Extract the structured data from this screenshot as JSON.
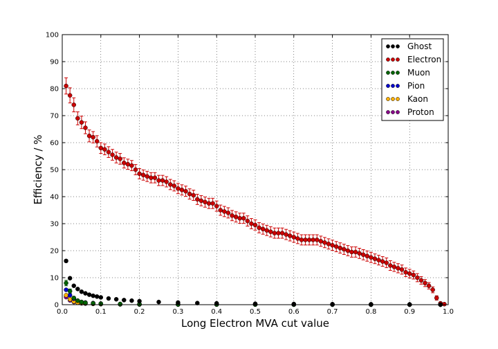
{
  "chart_data": {
    "type": "scatter",
    "title": "",
    "xlabel": "Long Electron MVA cut value",
    "ylabel": "Efficiency / %",
    "xlim": [
      0.0,
      1.0
    ],
    "ylim": [
      0,
      100
    ],
    "xticks": [
      "0.0",
      "0.1",
      "0.2",
      "0.3",
      "0.4",
      "0.5",
      "0.6",
      "0.7",
      "0.8",
      "0.9",
      "1.0"
    ],
    "yticks": [
      "0",
      "10",
      "20",
      "30",
      "40",
      "50",
      "60",
      "70",
      "80",
      "90",
      "100"
    ],
    "grid": true,
    "legend_position": "top-right",
    "series": [
      {
        "name": "Ghost",
        "color": "#000000",
        "x": [
          0.01,
          0.02,
          0.03,
          0.04,
          0.05,
          0.06,
          0.07,
          0.08,
          0.09,
          0.1,
          0.12,
          0.14,
          0.16,
          0.18,
          0.2,
          0.25,
          0.3,
          0.35,
          0.4,
          0.5,
          0.6,
          0.7,
          0.8,
          0.9,
          0.98
        ],
        "y": [
          16.2,
          9.8,
          7.0,
          5.8,
          4.8,
          4.2,
          3.7,
          3.3,
          3.0,
          2.7,
          2.3,
          2.0,
          1.7,
          1.5,
          1.3,
          1.0,
          0.8,
          0.6,
          0.5,
          0.35,
          0.25,
          0.2,
          0.15,
          0.1,
          0.05
        ],
        "yerr": [
          0.5,
          0.4,
          0.3,
          0.3,
          0.2,
          0.2,
          0.2,
          0.15,
          0.15,
          0.15,
          0.1,
          0.1,
          0.1,
          0.1,
          0.1,
          0.1,
          0.1,
          0.05,
          0.05,
          0.05,
          0.05,
          0.05,
          0.05,
          0.05,
          0.05
        ]
      },
      {
        "name": "Electron",
        "color": "#cc0000",
        "x": [
          0.01,
          0.02,
          0.03,
          0.04,
          0.05,
          0.06,
          0.07,
          0.08,
          0.09,
          0.1,
          0.11,
          0.12,
          0.13,
          0.14,
          0.15,
          0.16,
          0.17,
          0.18,
          0.19,
          0.2,
          0.21,
          0.22,
          0.23,
          0.24,
          0.25,
          0.26,
          0.27,
          0.28,
          0.29,
          0.3,
          0.31,
          0.32,
          0.33,
          0.34,
          0.35,
          0.36,
          0.37,
          0.38,
          0.39,
          0.4,
          0.41,
          0.42,
          0.43,
          0.44,
          0.45,
          0.46,
          0.47,
          0.48,
          0.49,
          0.5,
          0.51,
          0.52,
          0.53,
          0.54,
          0.55,
          0.56,
          0.57,
          0.58,
          0.59,
          0.6,
          0.61,
          0.62,
          0.63,
          0.64,
          0.65,
          0.66,
          0.67,
          0.68,
          0.69,
          0.7,
          0.71,
          0.72,
          0.73,
          0.74,
          0.75,
          0.76,
          0.77,
          0.78,
          0.79,
          0.8,
          0.81,
          0.82,
          0.83,
          0.84,
          0.85,
          0.86,
          0.87,
          0.88,
          0.89,
          0.9,
          0.91,
          0.92,
          0.93,
          0.94,
          0.95,
          0.96,
          0.97,
          0.98,
          0.99
        ],
        "y": [
          81.0,
          77.5,
          74.0,
          69.0,
          67.5,
          65.5,
          62.5,
          62.0,
          60.5,
          58.0,
          57.5,
          56.5,
          55.5,
          54.5,
          54.0,
          52.5,
          52.0,
          51.5,
          50.0,
          48.5,
          48.0,
          47.5,
          47.0,
          47.0,
          46.0,
          46.0,
          45.5,
          44.5,
          44.0,
          43.0,
          42.5,
          42.0,
          41.0,
          40.5,
          39.0,
          38.5,
          38.0,
          37.5,
          37.5,
          36.5,
          35.0,
          34.5,
          34.0,
          33.0,
          32.5,
          32.0,
          32.0,
          31.0,
          30.0,
          29.5,
          28.5,
          28.0,
          27.5,
          27.0,
          26.5,
          26.5,
          26.5,
          26.0,
          25.5,
          25.0,
          24.5,
          24.0,
          24.0,
          24.0,
          24.0,
          24.0,
          23.5,
          23.0,
          22.5,
          22.0,
          21.5,
          21.0,
          20.5,
          20.0,
          19.5,
          19.5,
          19.0,
          18.5,
          18.0,
          17.5,
          17.0,
          16.5,
          16.0,
          15.5,
          14.5,
          14.0,
          13.5,
          13.0,
          12.0,
          11.5,
          11.0,
          10.0,
          9.0,
          8.0,
          7.0,
          5.5,
          2.5,
          0.5,
          0.2
        ],
        "yerr": [
          3.0,
          2.8,
          2.6,
          2.4,
          2.3,
          2.2,
          2.2,
          2.1,
          2.1,
          2.0,
          2.0,
          2.0,
          2.0,
          2.0,
          2.0,
          1.9,
          1.9,
          1.9,
          1.9,
          1.9,
          1.9,
          1.9,
          1.9,
          1.9,
          1.9,
          1.9,
          1.9,
          1.9,
          1.9,
          1.9,
          1.9,
          1.9,
          1.9,
          1.9,
          1.9,
          1.9,
          1.9,
          1.9,
          1.9,
          1.9,
          1.9,
          1.9,
          1.9,
          1.9,
          1.9,
          1.9,
          1.9,
          1.9,
          1.9,
          1.9,
          1.9,
          1.9,
          1.9,
          1.9,
          1.9,
          1.9,
          1.9,
          1.9,
          1.9,
          1.9,
          1.9,
          1.9,
          1.9,
          1.9,
          1.9,
          1.9,
          1.9,
          1.9,
          1.9,
          1.9,
          1.9,
          1.9,
          1.9,
          1.9,
          1.9,
          1.9,
          1.9,
          1.9,
          1.9,
          1.9,
          1.8,
          1.8,
          1.8,
          1.8,
          1.8,
          1.7,
          1.7,
          1.7,
          1.6,
          1.6,
          1.5,
          1.5,
          1.4,
          1.3,
          1.2,
          1.1,
          0.8,
          0.4,
          0.2
        ]
      },
      {
        "name": "Muon",
        "color": "#006400",
        "x": [
          0.01,
          0.02,
          0.03,
          0.04,
          0.05,
          0.06,
          0.08,
          0.1,
          0.15,
          0.2,
          0.3,
          0.4,
          0.5,
          0.6,
          0.7,
          0.8,
          0.9,
          0.98
        ],
        "y": [
          8.0,
          5.0,
          2.5,
          1.5,
          1.0,
          0.7,
          0.5,
          0.4,
          0.25,
          0.2,
          0.1,
          0.08,
          0.05,
          0.05,
          0.05,
          0.03,
          0.02,
          0.01
        ],
        "yerr": [
          1.0,
          0.8,
          0.5,
          0.4,
          0.3,
          0.2,
          0.2,
          0.1,
          0.1,
          0.1,
          0.05,
          0.05,
          0.05,
          0.05,
          0.05,
          0.05,
          0.05,
          0.05
        ]
      },
      {
        "name": "Pion",
        "color": "#0000cc",
        "x": [
          0.01,
          0.02,
          0.03,
          0.04,
          0.05,
          0.06,
          0.08,
          0.1,
          0.15,
          0.2,
          0.3,
          0.4,
          0.5,
          0.6,
          0.7,
          0.8,
          0.9,
          0.98
        ],
        "y": [
          5.5,
          3.5,
          2.2,
          1.5,
          1.0,
          0.8,
          0.6,
          0.4,
          0.25,
          0.15,
          0.1,
          0.08,
          0.05,
          0.04,
          0.03,
          0.02,
          0.02,
          0.01
        ],
        "yerr": [
          0.3,
          0.2,
          0.2,
          0.1,
          0.1,
          0.1,
          0.1,
          0.05,
          0.05,
          0.05,
          0.05,
          0.05,
          0.05,
          0.05,
          0.05,
          0.05,
          0.05,
          0.05
        ]
      },
      {
        "name": "Kaon",
        "color": "#ffb000",
        "x": [
          0.01,
          0.02,
          0.03,
          0.04,
          0.05,
          0.06,
          0.08,
          0.1,
          0.15,
          0.2,
          0.3,
          0.4,
          0.5,
          0.6,
          0.7,
          0.8,
          0.9,
          0.98
        ],
        "y": [
          3.5,
          2.0,
          1.2,
          0.8,
          0.6,
          0.5,
          0.35,
          0.25,
          0.15,
          0.1,
          0.07,
          0.05,
          0.04,
          0.03,
          0.02,
          0.02,
          0.01,
          0.01
        ],
        "yerr": [
          0.3,
          0.2,
          0.15,
          0.1,
          0.1,
          0.1,
          0.05,
          0.05,
          0.05,
          0.05,
          0.05,
          0.05,
          0.05,
          0.05,
          0.05,
          0.05,
          0.05,
          0.05
        ]
      },
      {
        "name": "Proton",
        "color": "#880088",
        "x": [
          0.01,
          0.02,
          0.03,
          0.04,
          0.05,
          0.06,
          0.08,
          0.1,
          0.15,
          0.2,
          0.3,
          0.4,
          0.5,
          0.6,
          0.7,
          0.8,
          0.9,
          0.98
        ],
        "y": [
          2.8,
          1.6,
          1.0,
          0.7,
          0.5,
          0.4,
          0.3,
          0.2,
          0.12,
          0.08,
          0.05,
          0.04,
          0.03,
          0.02,
          0.02,
          0.01,
          0.01,
          0.01
        ],
        "yerr": [
          0.3,
          0.2,
          0.15,
          0.1,
          0.1,
          0.1,
          0.05,
          0.05,
          0.05,
          0.05,
          0.05,
          0.05,
          0.05,
          0.05,
          0.05,
          0.05,
          0.05,
          0.05
        ]
      }
    ]
  }
}
